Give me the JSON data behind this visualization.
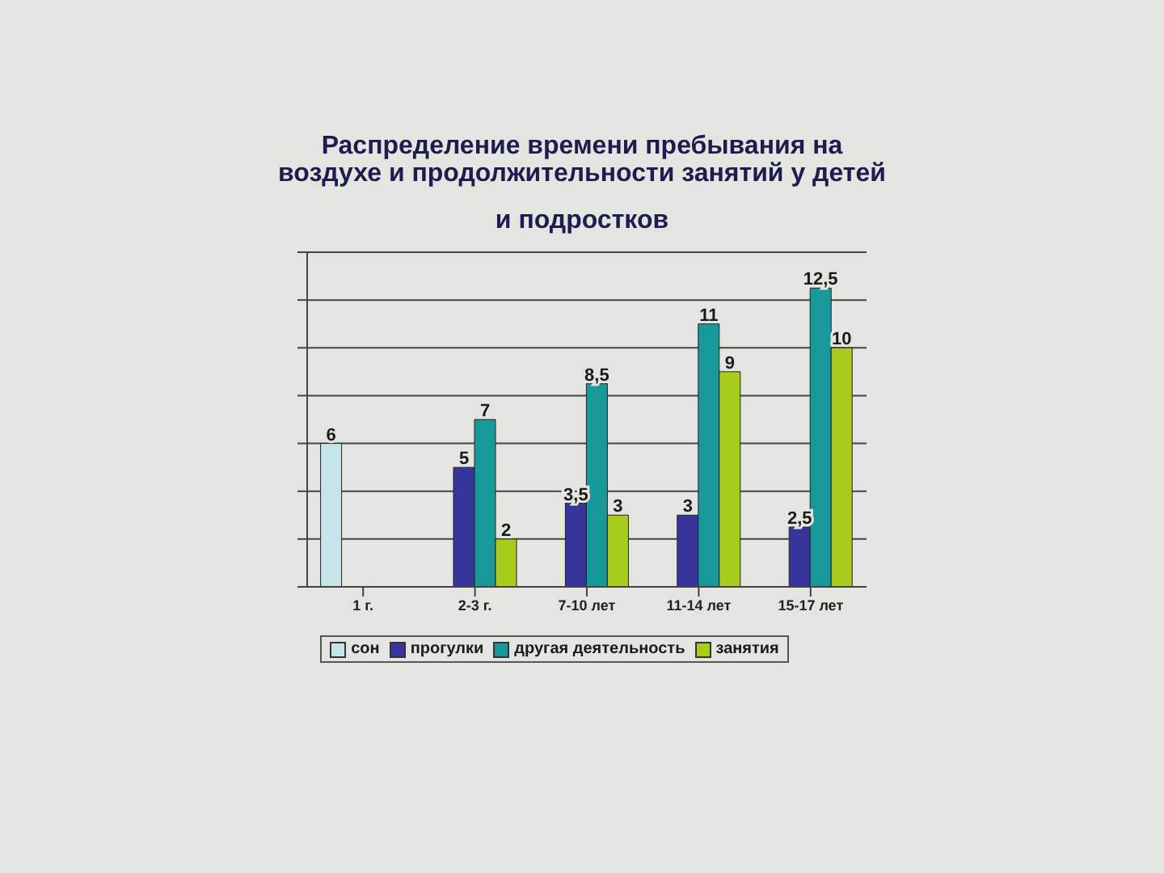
{
  "chart_data": {
    "type": "bar",
    "title": "Распределение времени пребывания на\nвоздухе и продолжительности занятий у детей\nи подростков",
    "categories": [
      "1 г.",
      "2-3 г.",
      "7-10 лет",
      "11-14 лет",
      "15-17 лет"
    ],
    "series": [
      {
        "name": "сон",
        "color": "#c4e4e8",
        "values": [
          6,
          null,
          null,
          null,
          null
        ],
        "value_labels": [
          "6",
          null,
          null,
          null,
          null
        ]
      },
      {
        "name": "прогулки",
        "color": "#35359c",
        "values": [
          null,
          5,
          3.5,
          3,
          2.5
        ],
        "value_labels": [
          null,
          "5",
          "3,5",
          "3",
          "2,5"
        ]
      },
      {
        "name": "другая деятельность",
        "color": "#17999c",
        "values": [
          null,
          7,
          8.5,
          11,
          12.5
        ],
        "value_labels": [
          null,
          "7",
          "8,5",
          "11",
          "12,5"
        ]
      },
      {
        "name": "занятия",
        "color": "#a8cc1e",
        "values": [
          null,
          2,
          3,
          9,
          10
        ],
        "value_labels": [
          null,
          "2",
          "3",
          "9",
          "10"
        ]
      }
    ],
    "ylim": [
      0,
      14
    ],
    "yticks": [
      {
        "value": 0,
        "label": null
      },
      {
        "value": 2,
        "label": null
      },
      {
        "value": 4,
        "label": null
      },
      {
        "value": 6,
        "label": null
      },
      {
        "value": 8,
        "label": null
      },
      {
        "value": 10,
        "label": null
      },
      {
        "value": 12,
        "label": null
      },
      {
        "value": 14,
        "label": null
      }
    ],
    "tick_labels": "x",
    "grid": "y",
    "legend": "bottom"
  }
}
